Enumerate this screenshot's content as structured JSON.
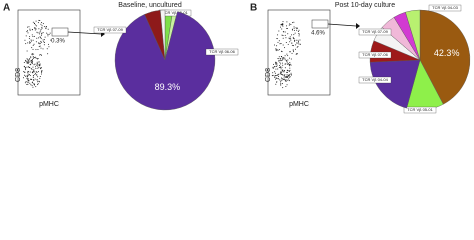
{
  "panels": [
    {
      "letter": "A",
      "title": "Baseline, uncultured",
      "gate": "0.3%",
      "y_axis": "CD8",
      "x_axis": "pMHC"
    },
    {
      "letter": "B",
      "title": "Post 10-day culture",
      "gate": "4.6%",
      "y_axis": "CD8",
      "x_axis": "pMHC"
    }
  ],
  "chart_data": [
    {
      "type": "pie",
      "categories": [
        null,
        "TCR Vβ 05-01",
        "TCR Vβ 06-06",
        "TCR Vβ 07-09",
        null
      ],
      "values": [
        2.5,
        1.5,
        89.3,
        5.2,
        1.5
      ],
      "value_labels": [
        null,
        null,
        "89.3%",
        null,
        null
      ],
      "colors": [
        "#7ee04a",
        "#c8f0a0",
        "#5a2e9e",
        "#8e1a1a",
        "#f4f4f4"
      ]
    },
    {
      "type": "pie",
      "categories": [
        "TCR Vβ 04-03",
        "TCR Vβ 05-01",
        "TCR Vβ 04-04",
        "TCR Vβ 07-06",
        null,
        "TCR Vβ 07-09",
        null,
        null
      ],
      "values": [
        42.3,
        12,
        20,
        7,
        5,
        5,
        4,
        4.7
      ],
      "value_labels": [
        "42.3%",
        null,
        null,
        null,
        null,
        null,
        null,
        null
      ],
      "colors": [
        "#9a5a10",
        "#8ef04a",
        "#5a2e9e",
        "#9e1a1a",
        "#f4f4f4",
        "#f0b8d8",
        "#d23ad2",
        "#b8f070"
      ]
    }
  ]
}
